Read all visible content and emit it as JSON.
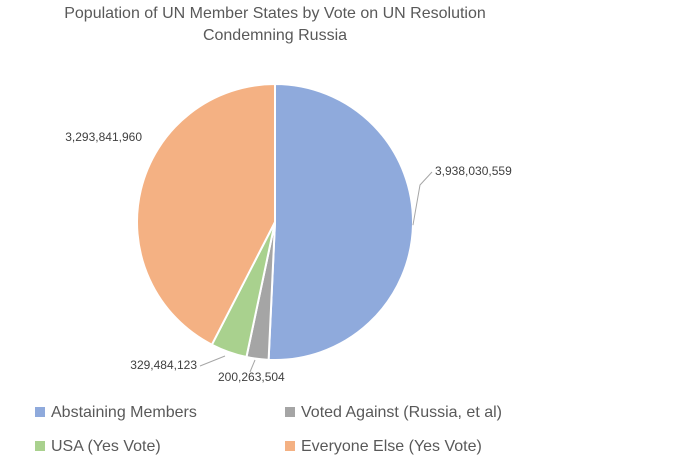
{
  "chart_data": {
    "type": "pie",
    "title": [
      "Population of UN Member States by Vote on UN Resolution",
      "Condemning Russia"
    ],
    "categories": [
      "Abstaining Members",
      "Voted Against (Russia, et al)",
      "USA (Yes Vote)",
      "Everyone Else (Yes Vote)"
    ],
    "values": [
      3938030559,
      200263504,
      329484123,
      3293841960
    ],
    "value_labels": [
      "3,938,030,559",
      "200,263,504",
      "329,484,123",
      "3,293,841,960"
    ],
    "colors": [
      "#8faadc",
      "#a5a5a5",
      "#a9d18e",
      "#f4b183"
    ]
  }
}
